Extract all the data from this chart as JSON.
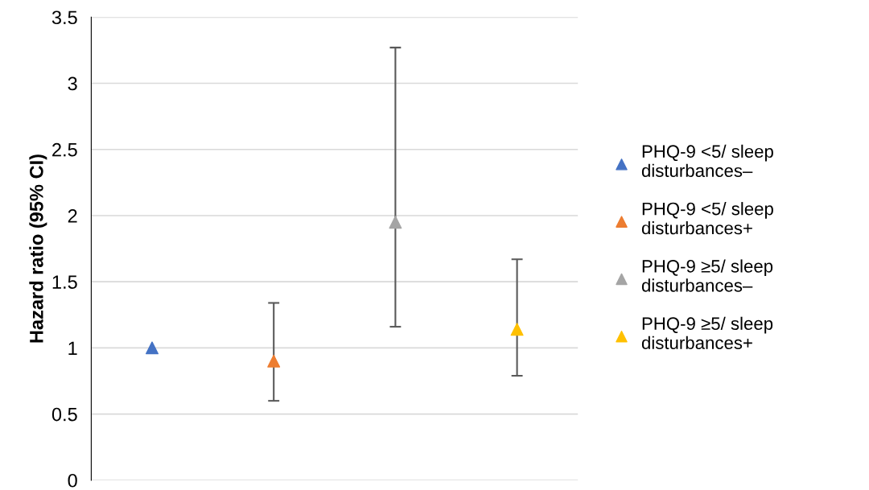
{
  "chart_data": {
    "type": "scatter",
    "ylabel": "Hazard ratio (95% CI)",
    "categories": [
      null,
      null,
      null,
      null
    ],
    "series": [
      {
        "name": "PHQ-9 <5/ sleep disturbances–",
        "color": "#4472c4",
        "values": [
          1.0,
          null,
          null,
          null
        ],
        "errors": [
          null,
          null,
          null,
          null
        ]
      },
      {
        "name": "PHQ-9 <5/ sleep disturbances+",
        "color": "#ed7d31",
        "values": [
          null,
          0.9,
          null,
          null
        ],
        "errors": [
          null,
          [
            0.6,
            1.34
          ],
          null,
          null
        ]
      },
      {
        "name": "PHQ-9 ≥5/ sleep disturbances–",
        "color": "#a5a5a5",
        "values": [
          null,
          null,
          1.95,
          null
        ],
        "errors": [
          null,
          null,
          [
            1.16,
            3.27
          ],
          null
        ]
      },
      {
        "name": "PHQ-9 ≥5/ sleep disturbances+",
        "color": "#ffc000",
        "values": [
          null,
          null,
          null,
          1.14
        ],
        "errors": [
          null,
          null,
          null,
          [
            0.79,
            1.67
          ]
        ]
      }
    ],
    "ylim": [
      0,
      3.5
    ],
    "yticks": [
      0,
      0.5,
      1,
      1.5,
      2,
      2.5,
      3,
      3.5
    ],
    "grid": "y",
    "legend": "right",
    "marker": "triangle"
  }
}
